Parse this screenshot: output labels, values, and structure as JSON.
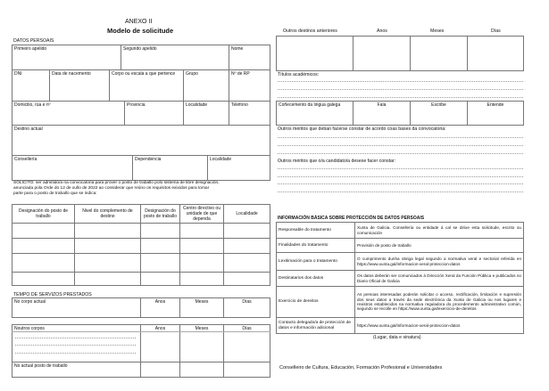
{
  "header": {
    "annex": "ANEXO II",
    "title": "Modelo de solicitude"
  },
  "personal": {
    "heading": "DATOS PERSOAIS",
    "primeiro": "Primeiro apelido",
    "segundo": "Segundo apelido",
    "nome": "Nome",
    "dni": "DNI",
    "data_nac": "Data de nacemento",
    "corpo": "Corpo ou escala a que pertence",
    "grupo": "Grupo",
    "nrp": "Nº de RP",
    "domicilio": "Domicilio, rúa e nº",
    "provincia": "Provincia",
    "localidade": "Localidade",
    "telefono": "Teléfono",
    "destino": "Destino actual",
    "conselleria": "Consellería",
    "dependencia": "Dependencia",
    "localidade2": "Localidade"
  },
  "solicito": {
    "line1": "SOLICITO: ser admitido/a na convocatoria para prover o posto de traballo polo sistema de libre designación,",
    "line2": "anunciada pola Orde do 12 de xullo de 2022 ao considerar que reúno os requisitos exixidos para tomar",
    "line3": "parte para o posto de traballo que se indica:"
  },
  "posts_table": {
    "headers": [
      "Designación do posto de traballo",
      "Nivel do complemento de destino",
      "Designación do posto de traballo",
      "Centro directivo ou unidade de que dependa",
      "Localidade"
    ]
  },
  "service": {
    "heading": "TEMPO DE SERVIZOS PRESTADOS",
    "current_body": "No corpo actual",
    "other_bodies": "Noutros corpos",
    "current_post": "No actual posto de traballo",
    "anos": "Anos",
    "meses": "Meses",
    "dias": "Días"
  },
  "right": {
    "outros_destinos": "Outros destinos anteriores",
    "anos": "Anos",
    "meses": "Meses",
    "dias": "Días",
    "titulos": "Títulos académicos:",
    "galego": "Coñecemento da lingua galega",
    "fala": "Fala",
    "escribe": "Escribe",
    "entende": "Entende",
    "meritos1": "Outros méritos que deban facerse constar de acordo coas bases da convocatoria:",
    "meritos2": "Outros méritos que o/a candidato/a desexe facer constar:"
  },
  "privacy": {
    "heading": "INFORMACIÓN BÁSICA SOBRE PROTECCIÓN DE DATOS PERSOAIS",
    "rows": [
      {
        "label": "Responsable do tratamento",
        "value": "Xunta de Galicia. Consellería ou entidade á cal se dirixe esta solicitude, escrito ou comunicación"
      },
      {
        "label": "Finalidades do tratamento",
        "value": "Provisión de posto de traballo"
      },
      {
        "label": "Lexitimación para o tratamento",
        "value": "O cumprimento dunha obriga legal segundo a normativa xeral e sectorial referida en https://www.xunta.gal/informacion-xeral-proteccion-datos"
      },
      {
        "label": "Destinatarios dos datos",
        "value": "Os datos deberán ser comunicados á Dirección Xeral da Función Pública e publicados no Diario Oficial de Galicia"
      },
      {
        "label": "Exercicio de dereitos",
        "value": "As persoas interesadas poderán solicitar o acceso, rectificación, limitación e supresión dos seus datos a través da sede electrónica da Xunta de Galicia ou nos lugares e rexistros establecidos na normativa reguladora do procedemento administrativo común, segundo se recolle en https://www.xunta.gal/exercicio-de-dereitos"
      },
      {
        "label": "Contacto delegado/a de protección de datos e información adicional",
        "value": "https://www.xunta.gal/informacion-xeral-proteccion-datos"
      }
    ]
  },
  "signature": "(Lugar, data e sinatura)",
  "addressee": "Conselleiro de Cultura, Educación, Formación Profesional e Universidades"
}
